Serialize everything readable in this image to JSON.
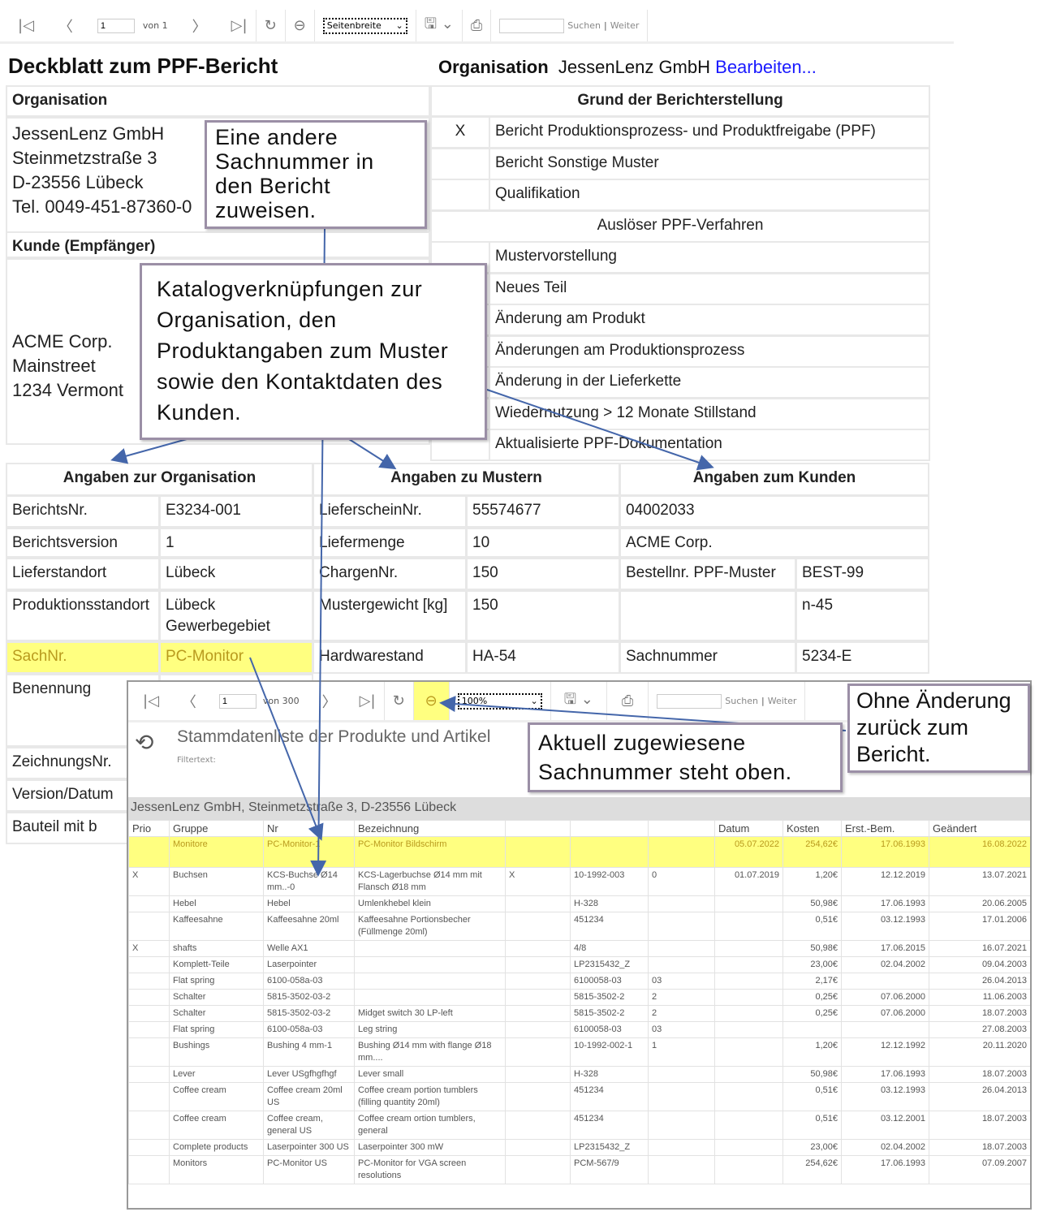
{
  "toolbar": {
    "page": "1",
    "of_label": "von 1",
    "zoom": "Seitenbreite",
    "search_placeholder": "",
    "search_label": "Suchen",
    "next_label": "Weiter"
  },
  "title": "Deckblatt zum PPF-Bericht",
  "org_header": {
    "label": "Organisation",
    "value": "JessenLenz GmbH",
    "edit_link": "Bearbeiten..."
  },
  "organisation": {
    "header": "Organisation",
    "lines": [
      "JessenLenz GmbH",
      "Steinmetzstraße 3",
      "D-23556 Lübeck",
      "Tel. 0049-451-87360-0"
    ]
  },
  "kunde": {
    "header": "Kunde (Empfänger)",
    "lines": [
      "ACME Corp.",
      "Mainstreet",
      "1234 Vermont"
    ]
  },
  "grund": {
    "header": "Grund der Berichterstellung",
    "rows": [
      {
        "mark": "X",
        "label": "Bericht Produktionsprozess- und Produktfreigabe (PPF)"
      },
      {
        "mark": "",
        "label": "Bericht Sonstige Muster"
      },
      {
        "mark": "",
        "label": "Qualifikation"
      },
      {
        "mark": "",
        "label": "Auslöser PPF-Verfahren",
        "subheader": true
      },
      {
        "mark": "",
        "label": "Mustervorstellung"
      },
      {
        "mark": "",
        "label": "Neues Teil"
      },
      {
        "mark": "",
        "label": "Änderung am Produkt"
      },
      {
        "mark": "",
        "label": "Änderungen am Produktionsprozess"
      },
      {
        "mark": "",
        "label": "Änderung in der Lieferkette"
      },
      {
        "mark": "",
        "label": "Wiedernutzung > 12 Monate Stillstand"
      },
      {
        "mark": "",
        "label": "Aktualisierte PPF-Dokumentation"
      }
    ]
  },
  "sections": {
    "org": "Angaben zur Organisation",
    "muster": "Angaben zu Mustern",
    "kunde": "Angaben zum Kunden"
  },
  "org_rows": [
    [
      "BerichtsNr.",
      "E3234-001"
    ],
    [
      "Berichtsversion",
      "1"
    ],
    [
      "Lieferstandort",
      "Lübeck"
    ],
    [
      "Produktionsstandort",
      "Lübeck Gewerbegebiet"
    ],
    [
      "SachNr.",
      "PC-Monitor"
    ],
    [
      "Benennung",
      ""
    ],
    [
      "ZeichnungsNr.",
      ""
    ],
    [
      "Version/Datum",
      ""
    ],
    [
      "Bauteil mit b",
      ""
    ]
  ],
  "muster_rows": [
    [
      "LieferscheinNr.",
      "55574677"
    ],
    [
      "Liefermenge",
      "10"
    ],
    [
      "ChargenNr.",
      "150"
    ],
    [
      "Mustergewicht [kg]",
      "150"
    ],
    [
      "Hardwarestand",
      "HA-54"
    ]
  ],
  "kunde_rows": [
    [
      "04002033",
      ""
    ],
    [
      "ACME Corp.",
      ""
    ],
    [
      "Bestellnr. PPF-Muster",
      "BEST-99"
    ],
    [
      "",
      "n-45"
    ],
    [
      "Sachnummer",
      "5234-E"
    ]
  ],
  "popup": {
    "toolbar": {
      "page": "1",
      "of_label": "von 300",
      "zoom": "100%",
      "search_label": "Suchen",
      "next_label": "Weiter"
    },
    "title": "Stammdatenliste der Produkte und Artikel",
    "filter_label": "Filtertext:",
    "group_bar": "JessenLenz GmbH, Steinmetzstraße 3, D-23556 Lübeck",
    "columns": [
      "Prio",
      "Gruppe",
      "Nr",
      "Bezeichnung",
      "",
      "",
      "",
      "Datum",
      "Kosten",
      "Erst.-Bem.",
      "Geändert"
    ],
    "rows": [
      [
        "",
        "Monitore",
        "PC-Monitor-1",
        "PC-Monitor Bildschirm",
        "",
        "",
        "",
        "05.07.2022",
        "254,62€",
        "17.06.1993",
        "16.08.2022"
      ],
      [
        "X",
        "Buchsen",
        "KCS-Buchse Ø14 mm..-0",
        "KCS-Lagerbuchse Ø14 mm mit Flansch Ø18 mm",
        "X",
        "10-1992-003",
        "0",
        "01.07.2019",
        "1,20€",
        "12.12.2019",
        "13.07.2021"
      ],
      [
        "",
        "Hebel",
        "Hebel",
        "Umlenkhebel klein",
        "",
        "H-328",
        "",
        "",
        "50,98€",
        "17.06.1993",
        "20.06.2005"
      ],
      [
        "",
        "Kaffeesahne",
        "Kaffeesahne 20ml",
        "Kaffeesahne Portionsbecher (Füllmenge 20ml)",
        "",
        "451234",
        "",
        "",
        "0,51€",
        "03.12.1993",
        "17.01.2006"
      ],
      [
        "X",
        "shafts",
        "Welle AX1",
        "",
        "",
        "4/8",
        "",
        "",
        "50,98€",
        "17.06.2015",
        "16.07.2021"
      ],
      [
        "",
        "Komplett-Teile",
        "Laserpointer",
        "",
        "",
        "LP2315432_Z",
        "",
        "",
        "23,00€",
        "02.04.2002",
        "09.04.2003"
      ],
      [
        "",
        "Flat spring",
        "6100-058a-03",
        "",
        "",
        "6100058-03",
        "03",
        "",
        "2,17€",
        "",
        "26.04.2013"
      ],
      [
        "",
        "Schalter",
        "5815-3502-03-2",
        "",
        "",
        "5815-3502-2",
        "2",
        "",
        "0,25€",
        "07.06.2000",
        "11.06.2003"
      ],
      [
        "",
        "Schalter",
        "5815-3502-03-2",
        "Midget switch 30 LP-left",
        "",
        "5815-3502-2",
        "2",
        "",
        "0,25€",
        "07.06.2000",
        "18.07.2003"
      ],
      [
        "",
        "Flat spring",
        "6100-058a-03",
        "Leg string",
        "",
        "6100058-03",
        "03",
        "",
        "",
        "",
        "27.08.2003"
      ],
      [
        "",
        "Bushings",
        "Bushing 4 mm-1",
        "Bushing Ø14 mm with flange Ø18 mm....",
        "",
        "10-1992-002-1",
        "1",
        "",
        "1,20€",
        "12.12.1992",
        "20.11.2020"
      ],
      [
        "",
        "Lever",
        "Lever USgfhgfhgf",
        "Lever small",
        "",
        "H-328",
        "",
        "",
        "50,98€",
        "17.06.1993",
        "18.07.2003"
      ],
      [
        "",
        "Coffee cream",
        "Coffee cream 20ml US",
        "Coffee cream portion tumblers (filling quantity 20ml)",
        "",
        "451234",
        "",
        "",
        "0,51€",
        "03.12.1993",
        "26.04.2013"
      ],
      [
        "",
        "Coffee cream",
        "Coffee cream, general US",
        "Coffee cream ortion tumblers, general",
        "",
        "451234",
        "",
        "",
        "0,51€",
        "03.12.2001",
        "18.07.2003"
      ],
      [
        "",
        "Complete products",
        "Laserpointer 300 US",
        "Laserpointer 300 mW",
        "",
        "LP2315432_Z",
        "",
        "",
        "23,00€",
        "02.04.2002",
        "18.07.2003"
      ],
      [
        "",
        "Monitors",
        "PC-Monitor US",
        "PC-Monitor for VGA screen resolutions",
        "",
        "PCM-567/9",
        "",
        "",
        "254,62€",
        "17.06.1993",
        "07.09.2007"
      ]
    ]
  },
  "callouts": {
    "katalog": "Katalogverknüpfungen zur Organisation, den Produktangaben zum Muster sowie den Kontaktdaten des Kunden.",
    "zurueck": "Ohne Änderung zurück zum Bericht.",
    "aktuell": "Aktuell zugewiesene Sachnummer steht oben.",
    "andere": "Eine andere Sachnummer in den Bericht zuweisen."
  },
  "colors": {
    "highlight": "#ffff80",
    "link": "#1a1aff",
    "arrow": "#4466aa",
    "callout_border": "#9b8fa6"
  }
}
